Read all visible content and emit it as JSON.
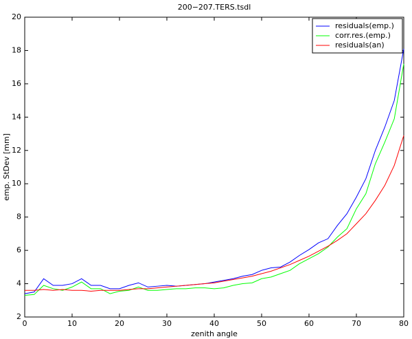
{
  "chart_data": {
    "type": "line",
    "title": "200−207.TERS.tsdl",
    "xlabel": "zenith angle",
    "ylabel": "emp. StDev [mm]",
    "x": [
      0,
      2,
      4,
      6,
      8,
      10,
      12,
      14,
      16,
      18,
      20,
      22,
      24,
      26,
      28,
      30,
      32,
      34,
      36,
      38,
      40,
      42,
      44,
      46,
      48,
      50,
      52,
      54,
      56,
      58,
      60,
      62,
      64,
      66,
      68,
      70,
      72,
      74,
      76,
      78,
      80
    ],
    "series": [
      {
        "name": "residuals(emp.)",
        "color": "#0000ff",
        "values": [
          3.4,
          3.5,
          4.3,
          3.9,
          3.9,
          4.0,
          4.3,
          3.9,
          3.9,
          3.7,
          3.7,
          3.9,
          4.05,
          3.8,
          3.85,
          3.9,
          3.85,
          3.9,
          3.95,
          4.0,
          4.1,
          4.2,
          4.3,
          4.45,
          4.55,
          4.8,
          4.95,
          5.0,
          5.3,
          5.7,
          6.05,
          6.45,
          6.7,
          7.5,
          8.2,
          9.2,
          10.3,
          12.0,
          13.4,
          15.0,
          18.1
        ]
      },
      {
        "name": "corr.res.(emp.)",
        "color": "#00ff00",
        "values": [
          3.3,
          3.35,
          3.9,
          3.7,
          3.6,
          3.8,
          4.1,
          3.7,
          3.7,
          3.4,
          3.55,
          3.6,
          3.8,
          3.6,
          3.6,
          3.65,
          3.7,
          3.7,
          3.75,
          3.75,
          3.7,
          3.75,
          3.9,
          4.0,
          4.05,
          4.3,
          4.4,
          4.6,
          4.8,
          5.2,
          5.5,
          5.8,
          6.2,
          6.8,
          7.3,
          8.5,
          9.4,
          11.2,
          12.5,
          13.9,
          17.2
        ]
      },
      {
        "name": "residuals(an)",
        "color": "#ff0000",
        "values": [
          3.6,
          3.6,
          3.65,
          3.6,
          3.65,
          3.6,
          3.6,
          3.55,
          3.6,
          3.6,
          3.6,
          3.65,
          3.7,
          3.7,
          3.75,
          3.8,
          3.85,
          3.9,
          3.95,
          4.0,
          4.05,
          4.15,
          4.25,
          4.35,
          4.45,
          4.6,
          4.75,
          4.95,
          5.15,
          5.4,
          5.65,
          5.95,
          6.25,
          6.6,
          7.0,
          7.6,
          8.2,
          9.0,
          9.9,
          11.1,
          12.9
        ]
      }
    ],
    "xlim": [
      0,
      80
    ],
    "xticks": [
      0,
      10,
      20,
      30,
      40,
      50,
      60,
      70,
      80
    ],
    "ylim": [
      2,
      20
    ],
    "yticks": [
      2,
      4,
      6,
      8,
      10,
      12,
      14,
      16,
      18,
      20
    ],
    "legend": "upper right",
    "grid": false
  }
}
